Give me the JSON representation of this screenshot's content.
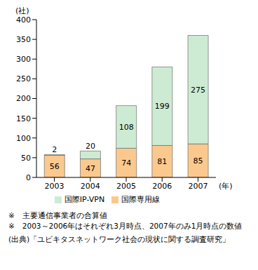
{
  "chart_data": {
    "type": "bar",
    "stacked": true,
    "data_labels": true,
    "y_label": "(社)",
    "x_label": "(年)",
    "categories": [
      "2003",
      "2004",
      "2005",
      "2006",
      "2007"
    ],
    "series": [
      {
        "name": "国際専用線",
        "color": "#fbc98e",
        "values": [
          56,
          47,
          74,
          81,
          85
        ]
      },
      {
        "name": "国際IP-VPN",
        "color": "#cdebd3",
        "values": [
          2,
          20,
          108,
          199,
          275
        ]
      }
    ],
    "ylim": [
      0,
      400
    ],
    "yticks": [
      0,
      50,
      100,
      150,
      200,
      250,
      300,
      350,
      400
    ],
    "grid": false,
    "legend": "bottom",
    "notes": [
      "※　主要通信事業者の合算値",
      "※　2003～2006年はそれぞれ3月時点、2007年のみ1月時点の数値"
    ],
    "source": "(出典)「ユビキタスネットワーク社会の現状に関する調査研究」"
  }
}
